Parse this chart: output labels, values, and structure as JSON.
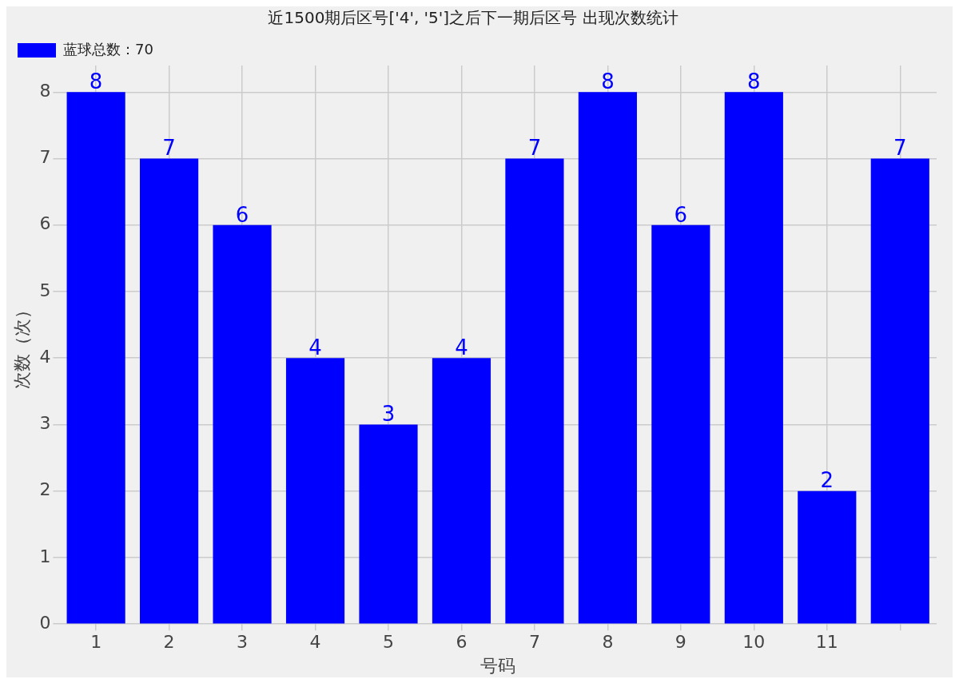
{
  "chart_data": {
    "type": "bar",
    "title": "近1500期后区号['4', '5']之后下一期后区号 出现次数统计",
    "xlabel": "号码",
    "ylabel": "次数（次）",
    "categories": [
      "1",
      "2",
      "3",
      "4",
      "5",
      "6",
      "7",
      "8",
      "9",
      "10",
      "11",
      null
    ],
    "series": [
      {
        "name": "蓝球总数：70",
        "color": "#0000ff",
        "values": [
          8,
          7,
          6,
          4,
          3,
          4,
          7,
          8,
          6,
          8,
          2,
          7
        ]
      }
    ],
    "ylim": [
      0,
      8.4
    ],
    "yticks": [
      0,
      1,
      2,
      3,
      4,
      5,
      6,
      7,
      8
    ],
    "grid": true,
    "legend": "top left",
    "data_labels": true
  }
}
